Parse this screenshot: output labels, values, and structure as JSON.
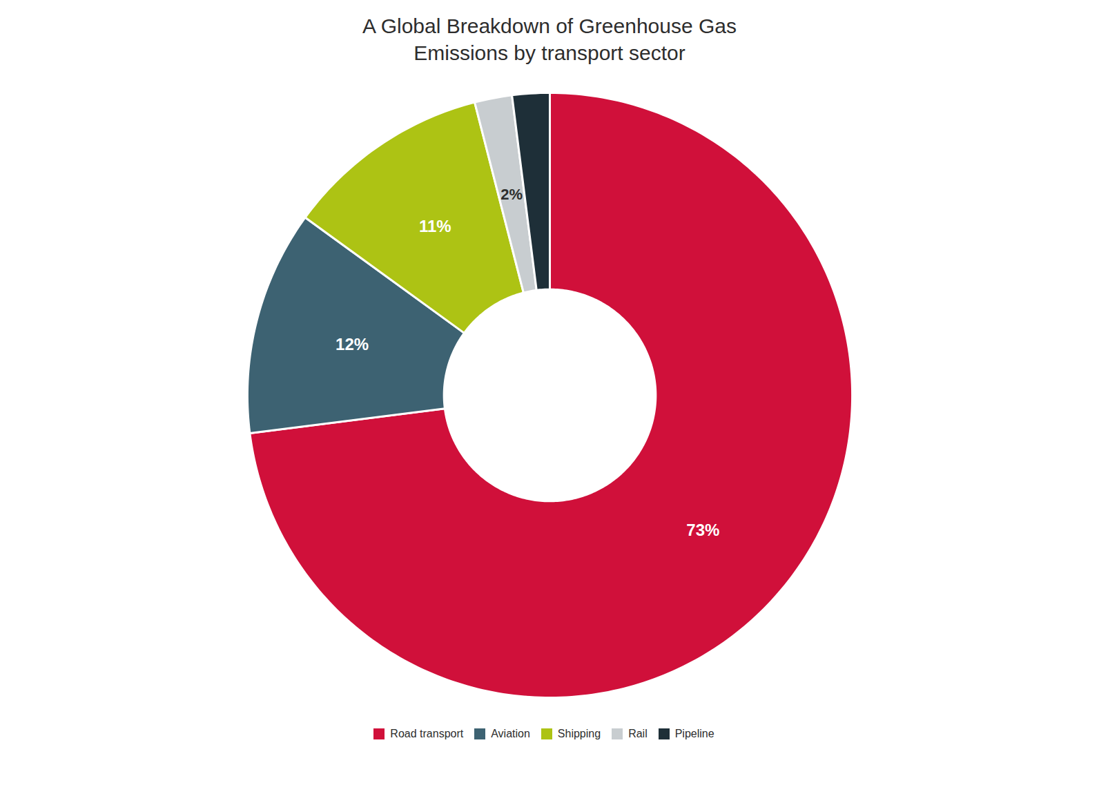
{
  "chart_data": {
    "type": "donut",
    "title": "A Global Breakdown of Greenhouse Gas\nEmissions by transport sector",
    "categories": [
      "Road transport",
      "Aviation",
      "Shipping",
      "Rail",
      "Pipeline"
    ],
    "values": [
      73,
      12,
      11,
      2,
      2
    ],
    "value_labels": [
      "73%",
      "12%",
      "11%",
      "2%",
      null
    ],
    "colors": [
      "#d0103a",
      "#3d6272",
      "#adc314",
      "#c8cdd0",
      "#1e2f38"
    ],
    "data_labels": true,
    "legend": "bottom"
  }
}
